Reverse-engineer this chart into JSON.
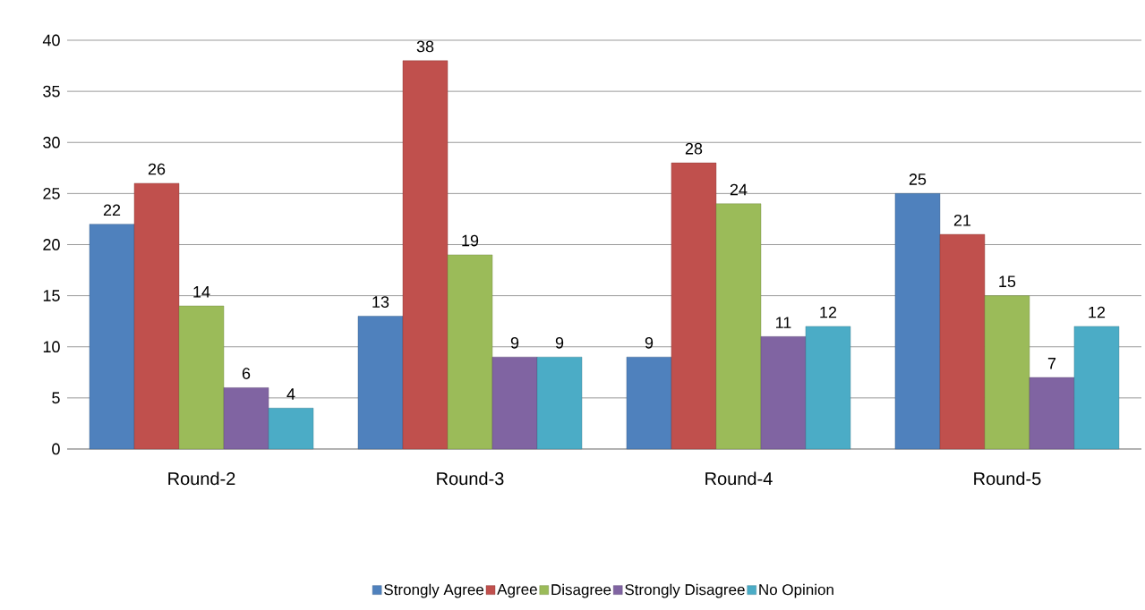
{
  "chart_data": {
    "type": "bar",
    "categories": [
      "Round-2",
      "Round-3",
      "Round-4",
      "Round-5"
    ],
    "series": [
      {
        "name": "Strongly Agree",
        "color": "#4f81bd",
        "values": [
          22,
          13,
          9,
          25
        ]
      },
      {
        "name": "Agree",
        "color": "#c0504d",
        "values": [
          26,
          38,
          28,
          21
        ]
      },
      {
        "name": "Disagree",
        "color": "#9bbb59",
        "values": [
          14,
          19,
          24,
          15
        ]
      },
      {
        "name": "Strongly Disagree",
        "color": "#8064a2",
        "values": [
          6,
          9,
          11,
          7
        ]
      },
      {
        "name": "No Opinion",
        "color": "#4bacc6",
        "values": [
          4,
          9,
          12,
          12
        ]
      }
    ],
    "ylim": [
      0,
      40
    ],
    "yticks": [
      0,
      5,
      10,
      15,
      20,
      25,
      30,
      35,
      40
    ],
    "grid": "y",
    "legend": "bottom",
    "data_labels": true
  }
}
